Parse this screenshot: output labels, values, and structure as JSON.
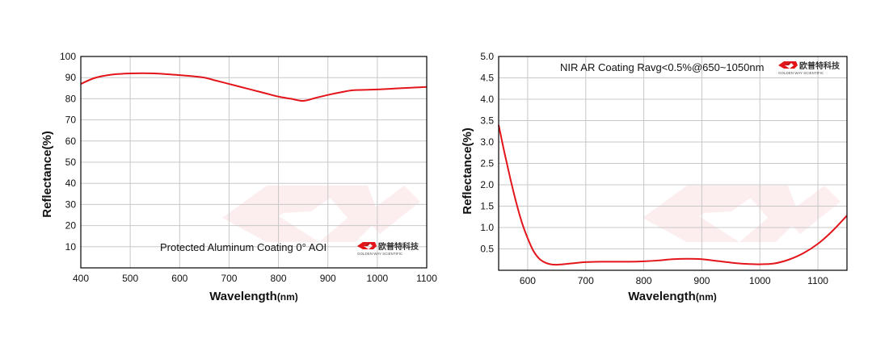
{
  "chart_data": [
    {
      "type": "line",
      "title": "",
      "annotation": "Protected Aluminum Coating  0°  AOI",
      "xlabel": "Wavelength",
      "xlabel_unit": "(nm)",
      "ylabel": "Reflectance(%)",
      "xlim": [
        400,
        1100
      ],
      "ylim": [
        0,
        100
      ],
      "xticks": [
        "400",
        "500",
        "600",
        "700",
        "800",
        "900",
        "1000",
        "1100"
      ],
      "yticks": [
        "10",
        "20",
        "30",
        "40",
        "50",
        "60",
        "70",
        "80",
        "90",
        "100"
      ],
      "grid": true,
      "series": [
        {
          "color": "#e3151b",
          "x": [
            400,
            425,
            450,
            475,
            500,
            525,
            550,
            575,
            600,
            625,
            650,
            675,
            700,
            725,
            750,
            775,
            800,
            825,
            850,
            875,
            900,
            925,
            950,
            975,
            1000,
            1025,
            1050,
            1075,
            1100
          ],
          "y": [
            87,
            89.6,
            91,
            91.7,
            92,
            92.1,
            92,
            91.6,
            91.2,
            90.7,
            90,
            88.5,
            87,
            85.5,
            84,
            82.5,
            81,
            80,
            79,
            80.4,
            81.8,
            83,
            84,
            84.2,
            84.4,
            84.7,
            85,
            85.3,
            85.6
          ]
        }
      ]
    },
    {
      "type": "line",
      "title": "",
      "annotation": "NIR AR Coating Ravg<0.5%@650~1050nm",
      "xlabel": "Wavelength",
      "xlabel_unit": "(nm)",
      "ylabel": "Reflectance(%)",
      "xlim": [
        550,
        1150
      ],
      "ylim": [
        0,
        5
      ],
      "xticks": [
        "600",
        "700",
        "800",
        "900",
        "1000",
        "1100"
      ],
      "yticks": [
        "0.5",
        "1.0",
        "1.5",
        "2.0",
        "2.5",
        "3.0",
        "3.5",
        "4.0",
        "4.5",
        "5.0"
      ],
      "grid": true,
      "series": [
        {
          "color": "#e3151b",
          "x": [
            550,
            560,
            570,
            580,
            590,
            600,
            610,
            620,
            630,
            640,
            650,
            660,
            675,
            700,
            725,
            750,
            775,
            800,
            825,
            850,
            875,
            900,
            925,
            950,
            975,
            1000,
            1025,
            1050,
            1075,
            1100,
            1125,
            1150
          ],
          "y": [
            3.4,
            2.75,
            2.15,
            1.6,
            1.12,
            0.75,
            0.45,
            0.27,
            0.18,
            0.14,
            0.13,
            0.14,
            0.16,
            0.19,
            0.2,
            0.2,
            0.2,
            0.21,
            0.23,
            0.26,
            0.27,
            0.26,
            0.22,
            0.18,
            0.15,
            0.14,
            0.16,
            0.25,
            0.4,
            0.62,
            0.92,
            1.28
          ]
        }
      ]
    }
  ],
  "logo": {
    "cn": "欧普特科技",
    "en": "GOLDEN WAY SCIENTIFIC"
  }
}
